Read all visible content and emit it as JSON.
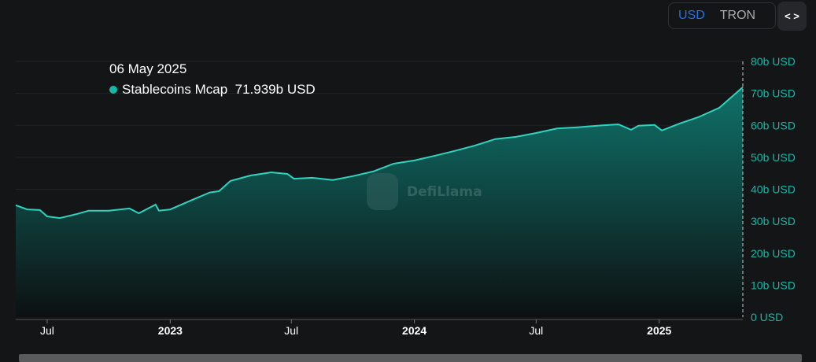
{
  "controls": {
    "usd": "USD",
    "tron": "TRON",
    "embed_icon": "code-brackets-icon"
  },
  "tooltip": {
    "date": "06 May 2025",
    "series": "Stablecoins Mcap",
    "value": "71.939b USD"
  },
  "watermark": "DefiLlama",
  "colors": {
    "line": "#2dd4bf",
    "fill": "#0f766e",
    "axis_label": "#14b8a6",
    "active": "#2172e5"
  },
  "chart_data": {
    "type": "area",
    "ylim": [
      0,
      80
    ],
    "xlim": [
      "2022-05-15",
      "2025-05-06"
    ],
    "y_ticks": [
      "0 USD",
      "10b USD",
      "20b USD",
      "30b USD",
      "40b USD",
      "50b USD",
      "60b USD",
      "70b USD",
      "80b USD"
    ],
    "x_ticks": [
      {
        "date": "2022-07-01",
        "label": "Jul"
      },
      {
        "date": "2023-01-01",
        "label": "2023"
      },
      {
        "date": "2023-07-01",
        "label": "Jul"
      },
      {
        "date": "2024-01-01",
        "label": "2024"
      },
      {
        "date": "2024-07-01",
        "label": "Jul"
      },
      {
        "date": "2025-01-01",
        "label": "2025"
      }
    ],
    "series": [
      {
        "name": "Stablecoins Mcap",
        "unit": "b USD",
        "points": [
          [
            "2022-05-15",
            35
          ],
          [
            "2022-06-01",
            33.7
          ],
          [
            "2022-06-20",
            33.5
          ],
          [
            "2022-07-01",
            31.5
          ],
          [
            "2022-07-20",
            31
          ],
          [
            "2022-08-15",
            32.3
          ],
          [
            "2022-09-01",
            33.3
          ],
          [
            "2022-10-01",
            33.3
          ],
          [
            "2022-11-01",
            34
          ],
          [
            "2022-11-15",
            32.5
          ],
          [
            "2022-12-10",
            35.2
          ],
          [
            "2022-12-15",
            33.3
          ],
          [
            "2023-01-01",
            33.7
          ],
          [
            "2023-02-01",
            36.5
          ],
          [
            "2023-03-01",
            39
          ],
          [
            "2023-03-15",
            39.4
          ],
          [
            "2023-04-01",
            42.6
          ],
          [
            "2023-05-01",
            44.3
          ],
          [
            "2023-06-01",
            45.3
          ],
          [
            "2023-06-25",
            44.8
          ],
          [
            "2023-07-05",
            43.3
          ],
          [
            "2023-08-01",
            43.6
          ],
          [
            "2023-09-01",
            42.9
          ],
          [
            "2023-10-01",
            44.1
          ],
          [
            "2023-11-01",
            45.6
          ],
          [
            "2023-12-01",
            48
          ],
          [
            "2024-01-01",
            49
          ],
          [
            "2024-02-01",
            50.5
          ],
          [
            "2024-03-01",
            52
          ],
          [
            "2024-04-01",
            53.7
          ],
          [
            "2024-05-01",
            55.7
          ],
          [
            "2024-06-01",
            56.4
          ],
          [
            "2024-07-01",
            57.6
          ],
          [
            "2024-08-01",
            59
          ],
          [
            "2024-09-01",
            59.4
          ],
          [
            "2024-10-01",
            59.9
          ],
          [
            "2024-11-01",
            60.3
          ],
          [
            "2024-11-20",
            58.6
          ],
          [
            "2024-12-01",
            59.9
          ],
          [
            "2024-12-25",
            60.1
          ],
          [
            "2025-01-05",
            58.4
          ],
          [
            "2025-02-01",
            60.6
          ],
          [
            "2025-03-01",
            62.6
          ],
          [
            "2025-04-01",
            65.5
          ],
          [
            "2025-05-06",
            71.939
          ]
        ]
      }
    ]
  }
}
